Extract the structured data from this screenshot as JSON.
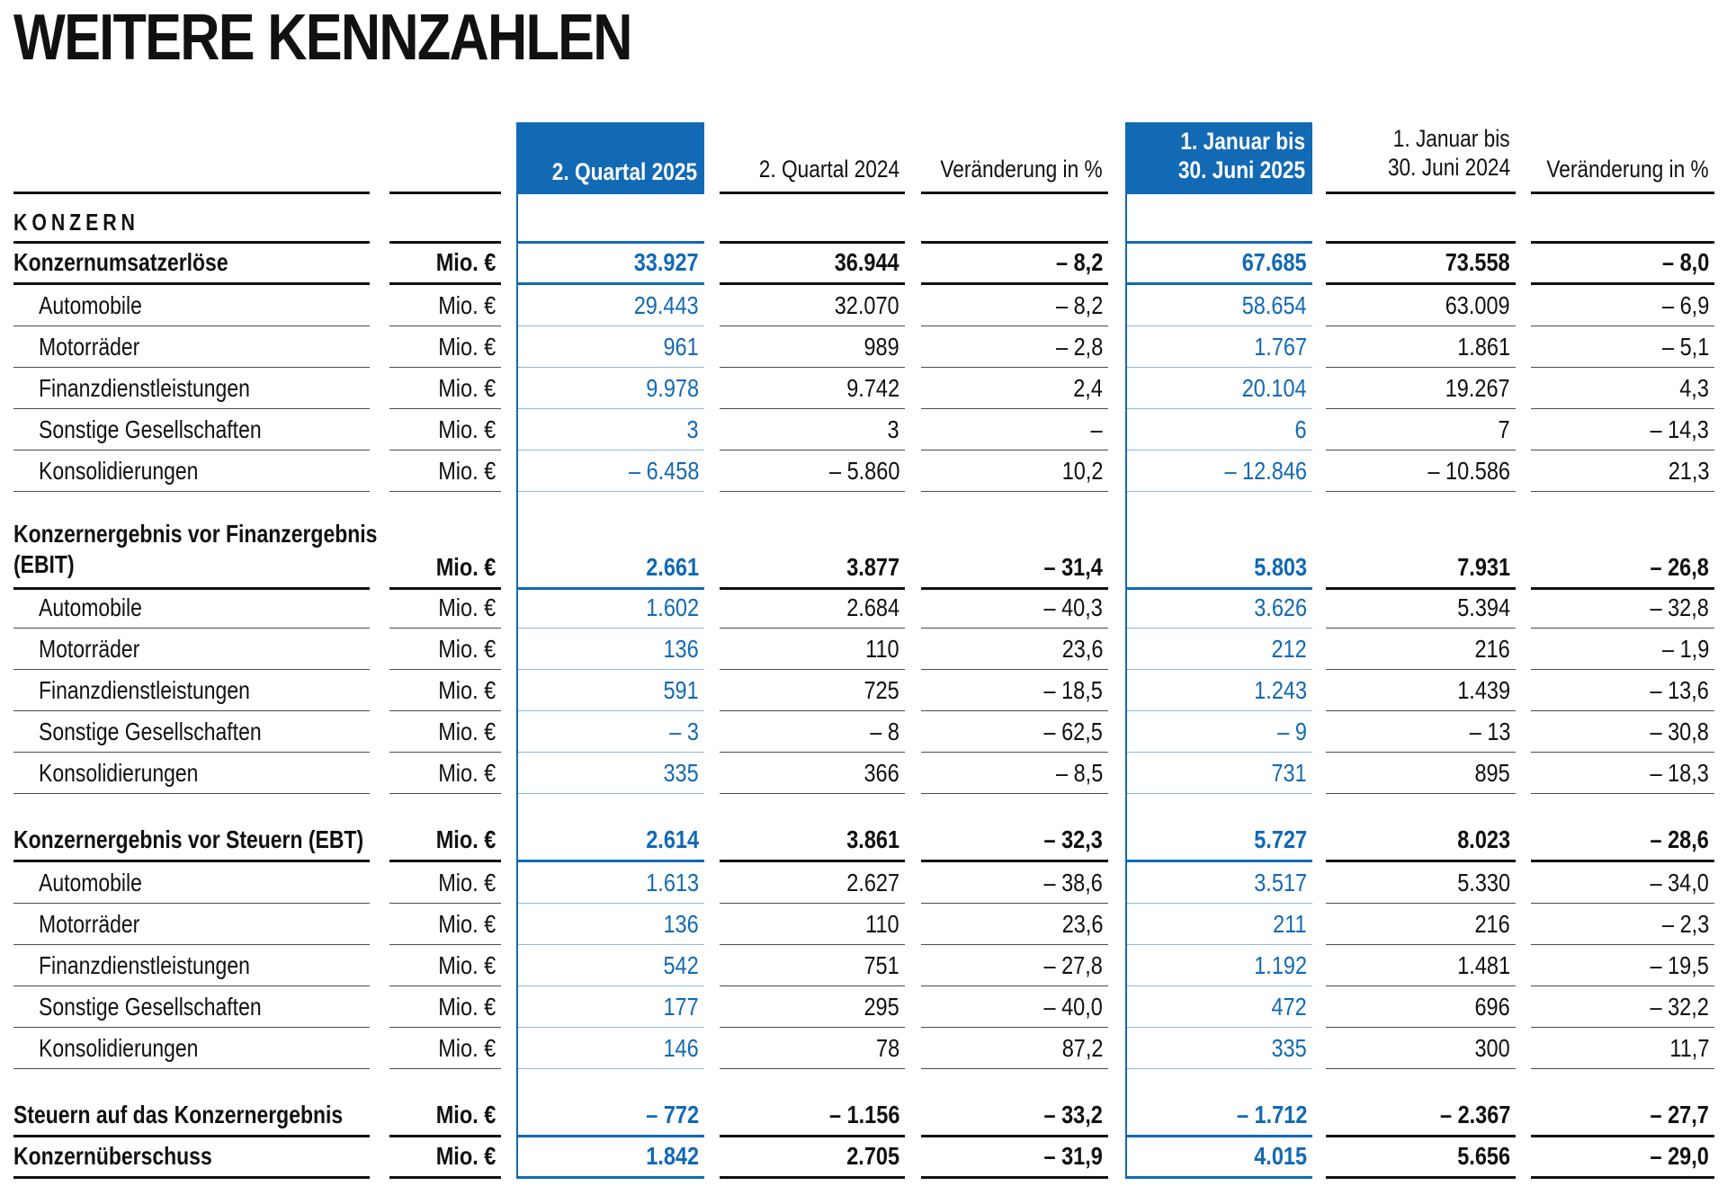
{
  "title": "WEITERE KENNZAHLEN",
  "colors": {
    "accent_blue": "#1269b4",
    "light_blue_rule": "#90b8dc",
    "text": "#111111",
    "thin_rule": "#4c4c4c"
  },
  "table": {
    "unit_label": "Mio. €",
    "headers": {
      "q2_2025": "2. Quartal 2025",
      "q2_2024": "2. Quartal 2024",
      "change_pct": "Veränderung in %",
      "h1_2025_line1": "1. Januar bis",
      "h1_2025_line2": "30. Juni 2025",
      "h1_2024_line1": "1. Januar bis",
      "h1_2024_line2": "30. Juni 2024"
    },
    "rows": [
      {
        "type": "section",
        "label": "KONZERN"
      },
      {
        "type": "data",
        "bold": true,
        "label": "Konzernumsatzerlöse",
        "values": [
          "33.927",
          "36.944",
          "– 8,2",
          "67.685",
          "73.558",
          "– 8,0"
        ]
      },
      {
        "type": "data",
        "indent": true,
        "label": "Automobile",
        "values": [
          "29.443",
          "32.070",
          "– 8,2",
          "58.654",
          "63.009",
          "– 6,9"
        ]
      },
      {
        "type": "data",
        "indent": true,
        "label": "Motorräder",
        "values": [
          "961",
          "989",
          "– 2,8",
          "1.767",
          "1.861",
          "– 5,1"
        ]
      },
      {
        "type": "data",
        "indent": true,
        "label": "Finanzdienstleistungen",
        "values": [
          "9.978",
          "9.742",
          "2,4",
          "20.104",
          "19.267",
          "4,3"
        ]
      },
      {
        "type": "data",
        "indent": true,
        "label": "Sonstige Gesellschaften",
        "values": [
          "3",
          "3",
          "–",
          "6",
          "7",
          "– 14,3"
        ]
      },
      {
        "type": "data",
        "indent": true,
        "label": "Konsolidierungen",
        "values": [
          "– 6.458",
          "– 5.860",
          "10,2",
          "– 12.846",
          "– 10.586",
          "21,3"
        ]
      },
      {
        "type": "gap"
      },
      {
        "type": "data",
        "bold": true,
        "label": "Konzernergebnis vor Finanzergebnis",
        "label2": "(EBIT)",
        "values": [
          "2.661",
          "3.877",
          "– 31,4",
          "5.803",
          "7.931",
          "– 26,8"
        ]
      },
      {
        "type": "data",
        "indent": true,
        "label": "Automobile",
        "values": [
          "1.602",
          "2.684",
          "– 40,3",
          "3.626",
          "5.394",
          "– 32,8"
        ]
      },
      {
        "type": "data",
        "indent": true,
        "label": "Motorräder",
        "values": [
          "136",
          "110",
          "23,6",
          "212",
          "216",
          "– 1,9"
        ]
      },
      {
        "type": "data",
        "indent": true,
        "label": "Finanzdienstleistungen",
        "values": [
          "591",
          "725",
          "– 18,5",
          "1.243",
          "1.439",
          "– 13,6"
        ]
      },
      {
        "type": "data",
        "indent": true,
        "label": "Sonstige Gesellschaften",
        "values": [
          "– 3",
          "– 8",
          "– 62,5",
          "– 9",
          "– 13",
          "– 30,8"
        ]
      },
      {
        "type": "data",
        "indent": true,
        "label": "Konsolidierungen",
        "values": [
          "335",
          "366",
          "– 8,5",
          "731",
          "895",
          "– 18,3"
        ]
      },
      {
        "type": "gap"
      },
      {
        "type": "data",
        "bold": true,
        "label": "Konzernergebnis vor Steuern (EBT)",
        "values": [
          "2.614",
          "3.861",
          "– 32,3",
          "5.727",
          "8.023",
          "– 28,6"
        ]
      },
      {
        "type": "data",
        "indent": true,
        "label": "Automobile",
        "values": [
          "1.613",
          "2.627",
          "– 38,6",
          "3.517",
          "5.330",
          "– 34,0"
        ]
      },
      {
        "type": "data",
        "indent": true,
        "label": "Motorräder",
        "values": [
          "136",
          "110",
          "23,6",
          "211",
          "216",
          "– 2,3"
        ]
      },
      {
        "type": "data",
        "indent": true,
        "label": "Finanzdienstleistungen",
        "values": [
          "542",
          "751",
          "– 27,8",
          "1.192",
          "1.481",
          "– 19,5"
        ]
      },
      {
        "type": "data",
        "indent": true,
        "label": "Sonstige Gesellschaften",
        "values": [
          "177",
          "295",
          "– 40,0",
          "472",
          "696",
          "– 32,2"
        ]
      },
      {
        "type": "data",
        "indent": true,
        "label": "Konsolidierungen",
        "values": [
          "146",
          "78",
          "87,2",
          "335",
          "300",
          "11,7"
        ]
      },
      {
        "type": "gap"
      },
      {
        "type": "data",
        "bold": true,
        "label": "Steuern auf das Konzernergebnis",
        "values": [
          "– 772",
          "– 1.156",
          "– 33,2",
          "– 1.712",
          "– 2.367",
          "– 27,7"
        ]
      },
      {
        "type": "data",
        "bold": true,
        "label": "Konzernüberschuss",
        "values": [
          "1.842",
          "2.705",
          "– 31,9",
          "4.015",
          "5.656",
          "– 29,0"
        ]
      }
    ]
  }
}
